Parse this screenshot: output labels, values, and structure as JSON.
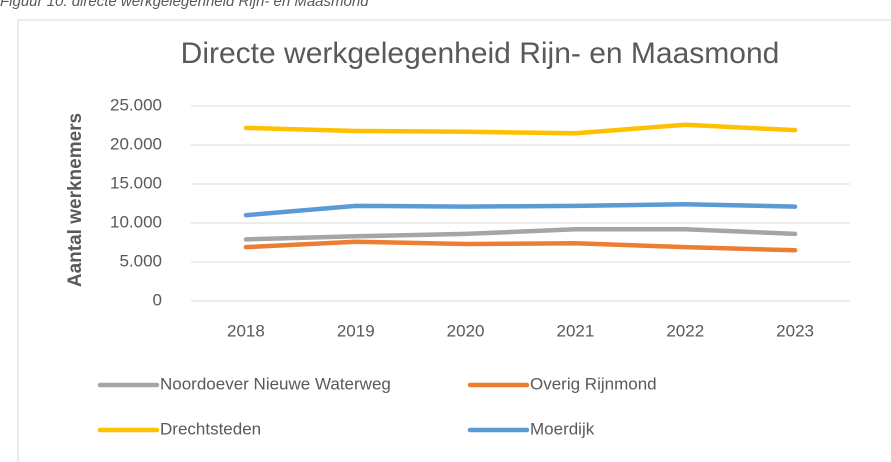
{
  "caption": "Figuur 10: directe werkgelegenheid Rijn- en Maasmond",
  "chart_data": {
    "type": "line",
    "title": "Directe werkgelegenheid Rijn- en Maasmond",
    "y_label": "Aantal werknemers",
    "categories": [
      "2018",
      "2019",
      "2020",
      "2021",
      "2022",
      "2023"
    ],
    "series": [
      {
        "name": "Noordoever Nieuwe Waterweg",
        "color": "#a5a5a5",
        "values": [
          7900,
          8300,
          8600,
          9200,
          9200,
          8600
        ]
      },
      {
        "name": "Overig Rijnmond",
        "color": "#ed7d31",
        "values": [
          6900,
          7600,
          7300,
          7400,
          6900,
          6500
        ]
      },
      {
        "name": "Drechtsteden",
        "color": "#ffc000",
        "values": [
          22200,
          21800,
          21700,
          21500,
          22600,
          21900
        ]
      },
      {
        "name": "Moerdijk",
        "color": "#5b9bd5",
        "values": [
          11000,
          12200,
          12100,
          12200,
          12400,
          12100
        ]
      }
    ],
    "ylim": [
      0,
      25000
    ],
    "yticks": [
      0,
      {
        "value": 5000,
        "label": "5.000"
      },
      {
        "value": 10000,
        "label": "10.000"
      },
      {
        "value": 15000,
        "label": "15.000"
      },
      {
        "value": 20000,
        "label": "20.000"
      },
      {
        "value": 25000,
        "label": "25.000"
      }
    ],
    "grid": true
  }
}
